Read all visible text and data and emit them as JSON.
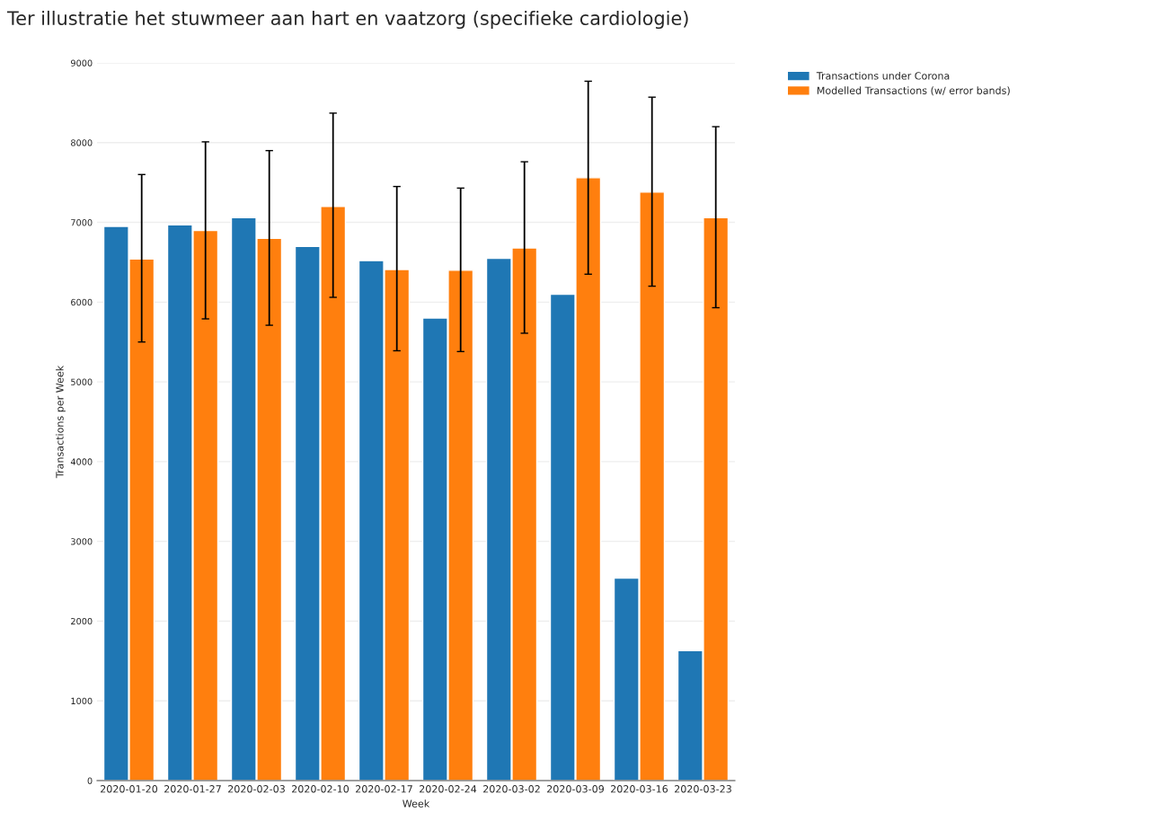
{
  "chart_data": {
    "type": "bar",
    "title": "Ter illustratie het stuwmeer aan hart en vaatzorg (specifieke cardiologie)",
    "xlabel": "Week",
    "ylabel": "Transactions per Week",
    "categories": [
      "2020-01-20",
      "2020-01-27",
      "2020-02-03",
      "2020-02-10",
      "2020-02-17",
      "2020-02-24",
      "2020-03-02",
      "2020-03-09",
      "2020-03-16",
      "2020-03-23"
    ],
    "series": [
      {
        "name": "Transactions under Corona",
        "color": "#1f77b4",
        "values": [
          6950,
          6970,
          7060,
          6700,
          6520,
          5800,
          6550,
          6100,
          2540,
          1630
        ]
      },
      {
        "name": "Modelled Transactions (w/ error bands)",
        "color": "#ff7f0e",
        "values": [
          6540,
          6900,
          6800,
          7200,
          6410,
          6400,
          6680,
          7560,
          7380,
          7060
        ],
        "errors": [
          [
            5500,
            7600
          ],
          [
            5790,
            8010
          ],
          [
            5710,
            7900
          ],
          [
            6060,
            8370
          ],
          [
            5390,
            7450
          ],
          [
            5380,
            7430
          ],
          [
            5610,
            7760
          ],
          [
            6350,
            8770
          ],
          [
            6200,
            8570
          ],
          [
            5930,
            8200
          ]
        ]
      }
    ],
    "ylim": [
      0,
      9000
    ],
    "yticks": [
      0,
      1000,
      2000,
      3000,
      4000,
      5000,
      6000,
      7000,
      8000,
      9000
    ],
    "grid": "y",
    "legend": "top right"
  }
}
